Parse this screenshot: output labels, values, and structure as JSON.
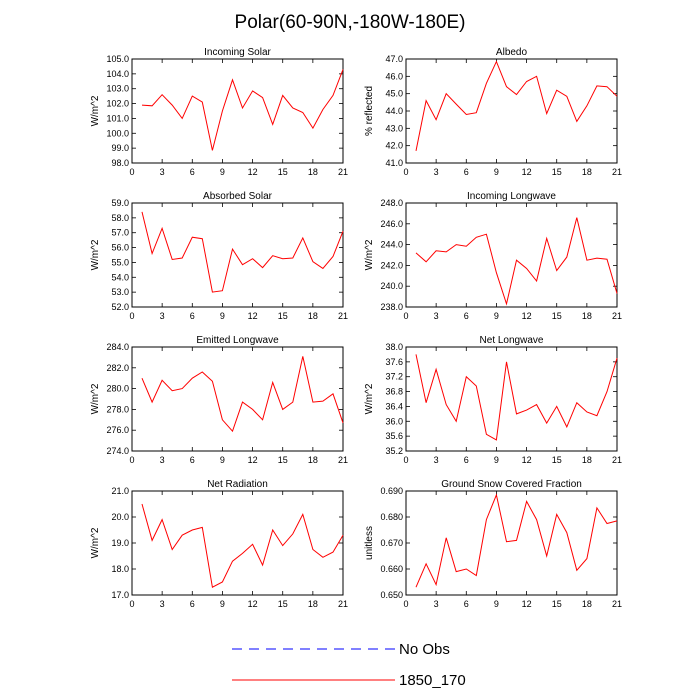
{
  "figure": {
    "title": "Polar(60-90N,-180W-180E)"
  },
  "chart_data": [
    {
      "type": "line",
      "title": "Incoming Solar",
      "ylabel": "W/m^2",
      "xlim": [
        0,
        21
      ],
      "ylim": [
        98.0,
        105.0
      ],
      "xticks": [
        0,
        3,
        6,
        9,
        12,
        15,
        18,
        21
      ],
      "yticks": [
        98.0,
        99.0,
        100.0,
        101.0,
        102.0,
        103.0,
        104.0,
        105.0
      ],
      "ydecimals": 1,
      "x": [
        1,
        2,
        3,
        4,
        5,
        6,
        7,
        8,
        9,
        10,
        11,
        12,
        13,
        14,
        15,
        16,
        17,
        18,
        19,
        20,
        21
      ],
      "series": [
        {
          "name": "1850_170",
          "values": [
            101.9,
            101.85,
            102.6,
            101.9,
            101.0,
            102.5,
            102.1,
            98.85,
            101.5,
            103.6,
            101.7,
            102.85,
            102.4,
            100.6,
            102.55,
            101.7,
            101.4,
            100.35,
            101.6,
            102.55,
            104.3
          ]
        }
      ]
    },
    {
      "type": "line",
      "title": "Albedo",
      "ylabel": "% reflected",
      "xlim": [
        0,
        21
      ],
      "ylim": [
        41.0,
        47.0
      ],
      "xticks": [
        0,
        3,
        6,
        9,
        12,
        15,
        18,
        21
      ],
      "yticks": [
        41.0,
        42.0,
        43.0,
        44.0,
        45.0,
        46.0,
        47.0
      ],
      "ydecimals": 1,
      "x": [
        1,
        2,
        3,
        4,
        5,
        6,
        7,
        8,
        9,
        10,
        11,
        12,
        13,
        14,
        15,
        16,
        17,
        18,
        19,
        20,
        21
      ],
      "series": [
        {
          "name": "1850_170",
          "values": [
            41.7,
            44.6,
            43.5,
            45.0,
            44.4,
            43.8,
            43.9,
            45.6,
            46.85,
            45.4,
            44.95,
            45.7,
            46.0,
            43.85,
            45.2,
            44.85,
            43.4,
            44.3,
            45.45,
            45.4,
            44.85
          ]
        }
      ]
    },
    {
      "type": "line",
      "title": "Absorbed Solar",
      "ylabel": "W/m^2",
      "xlim": [
        0,
        21
      ],
      "ylim": [
        52.0,
        59.0
      ],
      "xticks": [
        0,
        3,
        6,
        9,
        12,
        15,
        18,
        21
      ],
      "yticks": [
        52.0,
        53.0,
        54.0,
        55.0,
        56.0,
        57.0,
        58.0,
        59.0
      ],
      "ydecimals": 1,
      "x": [
        1,
        2,
        3,
        4,
        5,
        6,
        7,
        8,
        9,
        10,
        11,
        12,
        13,
        14,
        15,
        16,
        17,
        18,
        19,
        20,
        21
      ],
      "series": [
        {
          "name": "1850_170",
          "values": [
            58.4,
            55.6,
            57.3,
            55.2,
            55.3,
            56.7,
            56.6,
            53.0,
            53.1,
            55.9,
            54.85,
            55.25,
            54.65,
            55.45,
            55.25,
            55.3,
            56.65,
            55.05,
            54.6,
            55.4,
            57.1
          ]
        }
      ]
    },
    {
      "type": "line",
      "title": "Incoming Longwave",
      "ylabel": "W/m^2",
      "xlim": [
        0,
        21
      ],
      "ylim": [
        238.0,
        248.0
      ],
      "xticks": [
        0,
        3,
        6,
        9,
        12,
        15,
        18,
        21
      ],
      "yticks": [
        238.0,
        240.0,
        242.0,
        244.0,
        246.0,
        248.0
      ],
      "ydecimals": 1,
      "x": [
        1,
        2,
        3,
        4,
        5,
        6,
        7,
        8,
        9,
        10,
        11,
        12,
        13,
        14,
        15,
        16,
        17,
        18,
        19,
        20,
        21
      ],
      "series": [
        {
          "name": "1850_170",
          "values": [
            243.2,
            242.35,
            243.4,
            243.3,
            244.0,
            243.85,
            244.7,
            245.0,
            241.3,
            238.3,
            242.5,
            241.7,
            240.5,
            244.6,
            241.5,
            242.8,
            246.6,
            242.5,
            242.7,
            242.6,
            239.3
          ]
        }
      ]
    },
    {
      "type": "line",
      "title": "Emitted Longwave",
      "ylabel": "W/m^2",
      "xlim": [
        0,
        21
      ],
      "ylim": [
        274.0,
        284.0
      ],
      "xticks": [
        0,
        3,
        6,
        9,
        12,
        15,
        18,
        21
      ],
      "yticks": [
        274.0,
        276.0,
        278.0,
        280.0,
        282.0,
        284.0
      ],
      "ydecimals": 1,
      "x": [
        1,
        2,
        3,
        4,
        5,
        6,
        7,
        8,
        9,
        10,
        11,
        12,
        13,
        14,
        15,
        16,
        17,
        18,
        19,
        20,
        21
      ],
      "series": [
        {
          "name": "1850_170",
          "values": [
            281.0,
            278.7,
            280.8,
            279.8,
            280.0,
            281.0,
            281.6,
            280.7,
            277.0,
            275.9,
            278.7,
            278.0,
            277.0,
            280.6,
            278.0,
            278.7,
            283.1,
            278.7,
            278.8,
            279.5,
            276.7
          ]
        }
      ]
    },
    {
      "type": "line",
      "title": "Net Longwave",
      "ylabel": "W/m^2",
      "xlim": [
        0,
        21
      ],
      "ylim": [
        35.2,
        38.0
      ],
      "xticks": [
        0,
        3,
        6,
        9,
        12,
        15,
        18,
        21
      ],
      "yticks": [
        35.2,
        35.6,
        36.0,
        36.4,
        36.8,
        37.2,
        37.6,
        38.0
      ],
      "ydecimals": 1,
      "x": [
        1,
        2,
        3,
        4,
        5,
        6,
        7,
        8,
        9,
        10,
        11,
        12,
        13,
        14,
        15,
        16,
        17,
        18,
        19,
        20,
        21
      ],
      "series": [
        {
          "name": "1850_170",
          "values": [
            37.8,
            36.5,
            37.4,
            36.45,
            36.0,
            37.2,
            36.95,
            35.65,
            35.5,
            37.6,
            36.2,
            36.3,
            36.45,
            35.95,
            36.4,
            35.85,
            36.5,
            36.25,
            36.15,
            36.8,
            37.7
          ]
        }
      ]
    },
    {
      "type": "line",
      "title": "Net Radiation",
      "ylabel": "W/m^2",
      "xlim": [
        0,
        21
      ],
      "ylim": [
        17.0,
        21.0
      ],
      "xticks": [
        0,
        3,
        6,
        9,
        12,
        15,
        18,
        21
      ],
      "yticks": [
        17.0,
        18.0,
        19.0,
        20.0,
        21.0
      ],
      "ydecimals": 1,
      "x": [
        1,
        2,
        3,
        4,
        5,
        6,
        7,
        8,
        9,
        10,
        11,
        12,
        13,
        14,
        15,
        16,
        17,
        18,
        19,
        20,
        21
      ],
      "series": [
        {
          "name": "1850_170",
          "values": [
            20.5,
            19.1,
            19.9,
            18.75,
            19.3,
            19.5,
            19.6,
            17.3,
            17.5,
            18.3,
            18.6,
            18.95,
            18.15,
            19.5,
            18.9,
            19.35,
            20.1,
            18.75,
            18.45,
            18.65,
            19.3
          ]
        }
      ]
    },
    {
      "type": "line",
      "title": "Ground Snow Covered Fraction",
      "ylabel": "unitless",
      "xlim": [
        0,
        21
      ],
      "ylim": [
        0.65,
        0.69
      ],
      "xticks": [
        0,
        3,
        6,
        9,
        12,
        15,
        18,
        21
      ],
      "yticks": [
        0.65,
        0.66,
        0.67,
        0.68,
        0.69
      ],
      "ydecimals": 3,
      "x": [
        1,
        2,
        3,
        4,
        5,
        6,
        7,
        8,
        9,
        10,
        11,
        12,
        13,
        14,
        15,
        16,
        17,
        18,
        19,
        20,
        21
      ],
      "series": [
        {
          "name": "1850_170",
          "values": [
            0.653,
            0.662,
            0.654,
            0.672,
            0.659,
            0.66,
            0.6575,
            0.679,
            0.6885,
            0.6705,
            0.671,
            0.686,
            0.679,
            0.665,
            0.681,
            0.674,
            0.6595,
            0.664,
            0.6835,
            0.6775,
            0.6785
          ]
        }
      ]
    }
  ],
  "legend": {
    "items": [
      {
        "label": "No Obs",
        "color": "#0000ff",
        "style": "dashed"
      },
      {
        "label": "1850_170",
        "color": "#ff0000",
        "style": "solid"
      }
    ]
  }
}
